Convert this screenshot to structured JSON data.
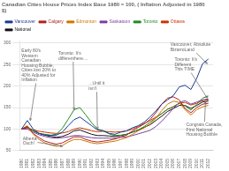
{
  "chart_data": {
    "type": "line",
    "title": "Canadian Cities House Prices Index Base 1980 = 100, ( Inflation Adjusted in 1980 $)",
    "x": [
      1980,
      1981,
      1982,
      1983,
      1984,
      1985,
      1986,
      1987,
      1988,
      1989,
      1990,
      1991,
      1992,
      1993,
      1994,
      1995,
      1996,
      1997,
      1998,
      1999,
      2000,
      2001,
      2002,
      2003,
      2004,
      2005,
      2006,
      2007,
      2008,
      2009,
      2010,
      2011,
      2012
    ],
    "series": [
      {
        "name": "Vancouver",
        "color": "#1a3a8c",
        "values": [
          100,
          120,
          100,
          90,
          86,
          85,
          86,
          93,
          108,
          122,
          128,
          118,
          108,
          98,
          96,
          90,
          88,
          93,
          96,
          103,
          108,
          116,
          128,
          142,
          158,
          168,
          178,
          198,
          202,
          192,
          218,
          252,
          263
        ]
      },
      {
        "name": "Calgary",
        "color": "#b22222",
        "values": [
          100,
          106,
          90,
          80,
          72,
          68,
          65,
          68,
          75,
          82,
          82,
          76,
          72,
          70,
          72,
          74,
          77,
          82,
          86,
          96,
          104,
          112,
          122,
          138,
          158,
          172,
          175,
          168,
          148,
          138,
          150,
          158,
          160
        ]
      },
      {
        "name": "Edmonton",
        "color": "#cc7700",
        "values": [
          100,
          108,
          88,
          76,
          68,
          63,
          60,
          62,
          70,
          76,
          76,
          72,
          68,
          66,
          68,
          70,
          72,
          76,
          80,
          88,
          96,
          103,
          112,
          125,
          143,
          158,
          165,
          162,
          145,
          133,
          145,
          152,
          155
        ]
      },
      {
        "name": "Saskatoon",
        "color": "#7b3fa0",
        "values": [
          100,
          100,
          93,
          87,
          83,
          80,
          79,
          80,
          82,
          85,
          85,
          82,
          80,
          79,
          79,
          79,
          79,
          81,
          82,
          85,
          89,
          93,
          97,
          106,
          118,
          133,
          148,
          162,
          166,
          158,
          163,
          168,
          170
        ]
      },
      {
        "name": "Toronto",
        "color": "#228b22",
        "values": [
          100,
          106,
          96,
          90,
          88,
          86,
          88,
          102,
          123,
          145,
          150,
          133,
          115,
          100,
          96,
          89,
          85,
          86,
          88,
          93,
          98,
          106,
          116,
          126,
          136,
          146,
          152,
          160,
          154,
          144,
          158,
          172,
          177
        ]
      },
      {
        "name": "Ottawa",
        "color": "#cc3300",
        "values": [
          100,
          103,
          98,
          95,
          93,
          91,
          90,
          91,
          94,
          100,
          103,
          100,
          96,
          94,
          95,
          94,
          93,
          94,
          96,
          100,
          106,
          113,
          120,
          128,
          136,
          146,
          152,
          160,
          162,
          156,
          160,
          166,
          168
        ]
      },
      {
        "name": "National",
        "color": "#111111",
        "values": [
          100,
          104,
          96,
          90,
          86,
          83,
          81,
          83,
          88,
          96,
          98,
          93,
          88,
          85,
          85,
          84,
          83,
          85,
          88,
          93,
          98,
          104,
          110,
          120,
          130,
          141,
          148,
          155,
          155,
          148,
          155,
          163,
          165
        ]
      }
    ],
    "xlim": [
      1979.7,
      2012.8
    ],
    "xticks": [
      1980,
      1981,
      1982,
      1983,
      1984,
      1985,
      1986,
      1987,
      1988,
      1989,
      1990,
      1991,
      1992,
      1993,
      1994,
      1995,
      1996,
      1997,
      1998,
      1999,
      2000,
      2001,
      2002,
      2003,
      2004,
      2005,
      2006,
      2007,
      2008,
      2009,
      2010,
      2011,
      2012
    ],
    "ylim": [
      50,
      305
    ],
    "yticks": [
      50,
      100,
      150,
      200,
      250,
      300
    ],
    "grid": "y",
    "legend": "upper left",
    "annotations": [
      {
        "text": "Early 80's\nWestern\nCanadian\nHousing Bubble,\nCities lost 20% to\n40% Adjusted for\nInflation",
        "xy": [
          1981.5,
          120
        ],
        "xytext": [
          1980.0,
          248
        ]
      },
      {
        "text": "Toronto: It's\ndifferenthere....",
        "xy": [
          1989.0,
          145
        ],
        "xytext": [
          1986.3,
          270
        ]
      },
      {
        "text": "...Until it\nisn't",
        "xy": [
          1993.0,
          100
        ],
        "xytext": [
          1991.5,
          200
        ]
      },
      {
        "text": "Alberta\nOuch!",
        "xy": [
          1987.0,
          60
        ],
        "xytext": [
          1980.2,
          72
        ]
      },
      {
        "text": "Vancouver, Absolute\nBizarroLand",
        "xy": [
          2011.8,
          252
        ],
        "xytext": [
          2005.5,
          290
        ]
      },
      {
        "text": "Toronto: It's\nDifferent\nThis TIME",
        "xy": [
          2011.8,
          172
        ],
        "xytext": [
          2006.2,
          250
        ]
      },
      {
        "text": "Congrats Canada,\nFirst National\nHousing Bubble",
        "xy": [
          2011.5,
          163
        ],
        "xytext": [
          2008.2,
          98
        ]
      }
    ]
  }
}
